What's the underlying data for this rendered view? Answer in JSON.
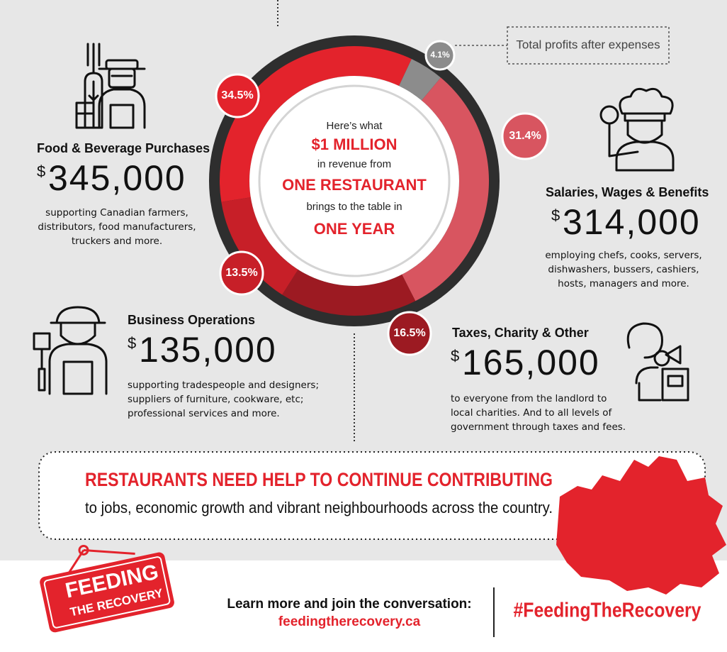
{
  "chart_data": {
    "type": "pie",
    "donut": true,
    "categories": [
      "Food & Beverage Purchases",
      "Total profits after expenses",
      "Salaries, Wages & Benefits",
      "Taxes, Charity & Other",
      "Business Operations"
    ],
    "values": [
      34.5,
      4.1,
      31.4,
      16.5,
      13.5
    ],
    "value_labels": [
      "34.5%",
      "4.1%",
      "31.4%",
      "16.5%",
      "13.5%"
    ],
    "colors": [
      "#e3232c",
      "#8c8c8c",
      "#d85560",
      "#9c1a22",
      "#c71f28"
    ],
    "center_text": [
      "Here’s what",
      "$1 MILLION",
      "in revenue from",
      "ONE RESTAURANT",
      "brings to the table in",
      "ONE YEAR"
    ]
  },
  "currency_symbol": "$",
  "blocks": {
    "food": {
      "amount": "345,000",
      "description": [
        "supporting Canadian farmers,",
        "distributors, food manufacturers,",
        "truckers and more."
      ]
    },
    "salaries": {
      "amount": "314,000",
      "description": [
        "employing chefs, cooks, servers,",
        "dishwashers, bussers, cashiers,",
        "hosts, managers and more."
      ]
    },
    "taxes": {
      "amount": "165,000",
      "description": [
        "to everyone from the landlord to",
        "local charities. And to all levels of",
        "government through taxes and fees."
      ]
    },
    "business": {
      "amount": "135,000",
      "description": [
        "supporting tradespeople and designers;",
        "suppliers of furniture, cookware, etc;",
        "professional services and more."
      ]
    }
  },
  "banner": {
    "headline": "RESTAURANTS NEED HELP TO CONTINUE CONTRIBUTING",
    "subline": "to jobs, economic growth and vibrant neighbourhoods across the country."
  },
  "footer": {
    "logo_top": "FEEDING",
    "logo_bottom": "THE RECOVERY",
    "cta": "Learn more and join the conversation:",
    "url": "feedingtherecovery.ca",
    "hashtag": "#FeedingTheRecovery"
  }
}
